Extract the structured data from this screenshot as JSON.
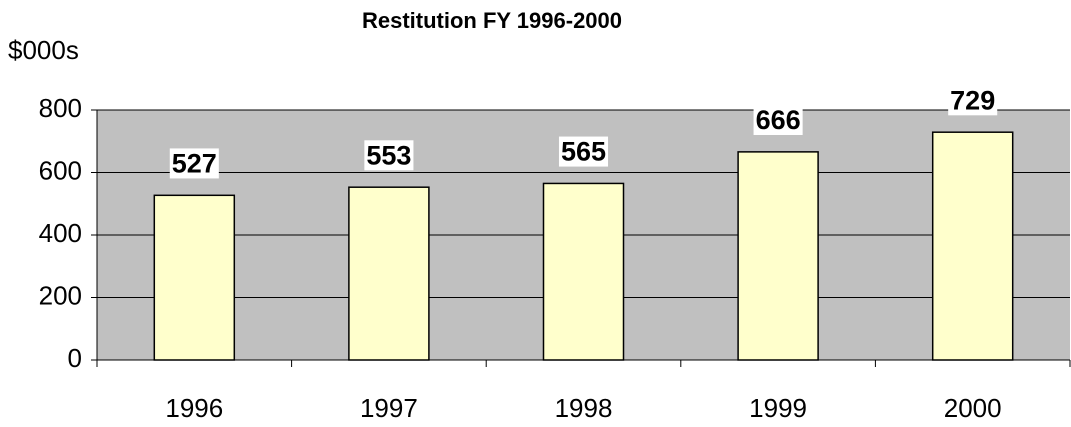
{
  "chart_data": {
    "type": "bar",
    "title": "Restitution FY 1996-2000",
    "y_label": "$000s",
    "categories": [
      "1996",
      "1997",
      "1998",
      "1999",
      "2000"
    ],
    "values": [
      527,
      553,
      565,
      666,
      729
    ],
    "color": "#ffffcc",
    "plot_background": "#c0c0c0",
    "ylim": [
      0,
      800
    ],
    "yticks": [
      0,
      200,
      400,
      600,
      800
    ],
    "grid": true
  }
}
